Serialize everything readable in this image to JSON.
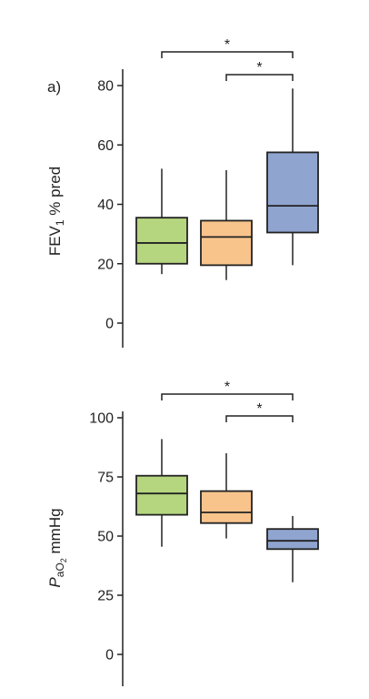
{
  "chart_data": [
    {
      "type": "box",
      "panel_label": "a)",
      "ylabel_parts": {
        "main": "FEV",
        "sub": "1",
        "rest": " % pred"
      },
      "ylim": [
        -8,
        82
      ],
      "yticks": [
        0,
        20,
        40,
        60,
        80
      ],
      "colors": [
        "#b5d67f",
        "#f9c48c",
        "#8fa4cf"
      ],
      "boxes": [
        {
          "whisker_low": 16.5,
          "q1": 20,
          "median": 27,
          "q3": 35.5,
          "whisker_high": 52
        },
        {
          "whisker_low": 14.5,
          "q1": 19.5,
          "median": 29,
          "q3": 34.5,
          "whisker_high": 51.5
        },
        {
          "whisker_low": 19.5,
          "q1": 30.5,
          "median": 39.5,
          "q3": 57.5,
          "whisker_high": 79
        }
      ],
      "significance": [
        {
          "from": 0,
          "to": 2,
          "label": "*"
        },
        {
          "from": 1,
          "to": 2,
          "label": "*"
        }
      ]
    },
    {
      "type": "box",
      "panel_label": "",
      "ylabel_parts": {
        "main": "P",
        "sub": "aO",
        "subsub": "2",
        "rest": " mmHg"
      },
      "ylim": [
        -12.5,
        103
      ],
      "yticks": [
        0,
        25,
        50,
        75,
        100
      ],
      "colors": [
        "#b5d67f",
        "#f9c48c",
        "#8fa4cf"
      ],
      "boxes": [
        {
          "whisker_low": 45.5,
          "q1": 59,
          "median": 68,
          "q3": 75.5,
          "whisker_high": 91
        },
        {
          "whisker_low": 49,
          "q1": 55.5,
          "median": 60,
          "q3": 69,
          "whisker_high": 85
        },
        {
          "whisker_low": 30.5,
          "q1": 44.5,
          "median": 48,
          "q3": 53,
          "whisker_high": 58.5
        }
      ],
      "significance": [
        {
          "from": 0,
          "to": 2,
          "label": "*"
        },
        {
          "from": 1,
          "to": 2,
          "label": "*"
        }
      ]
    }
  ]
}
